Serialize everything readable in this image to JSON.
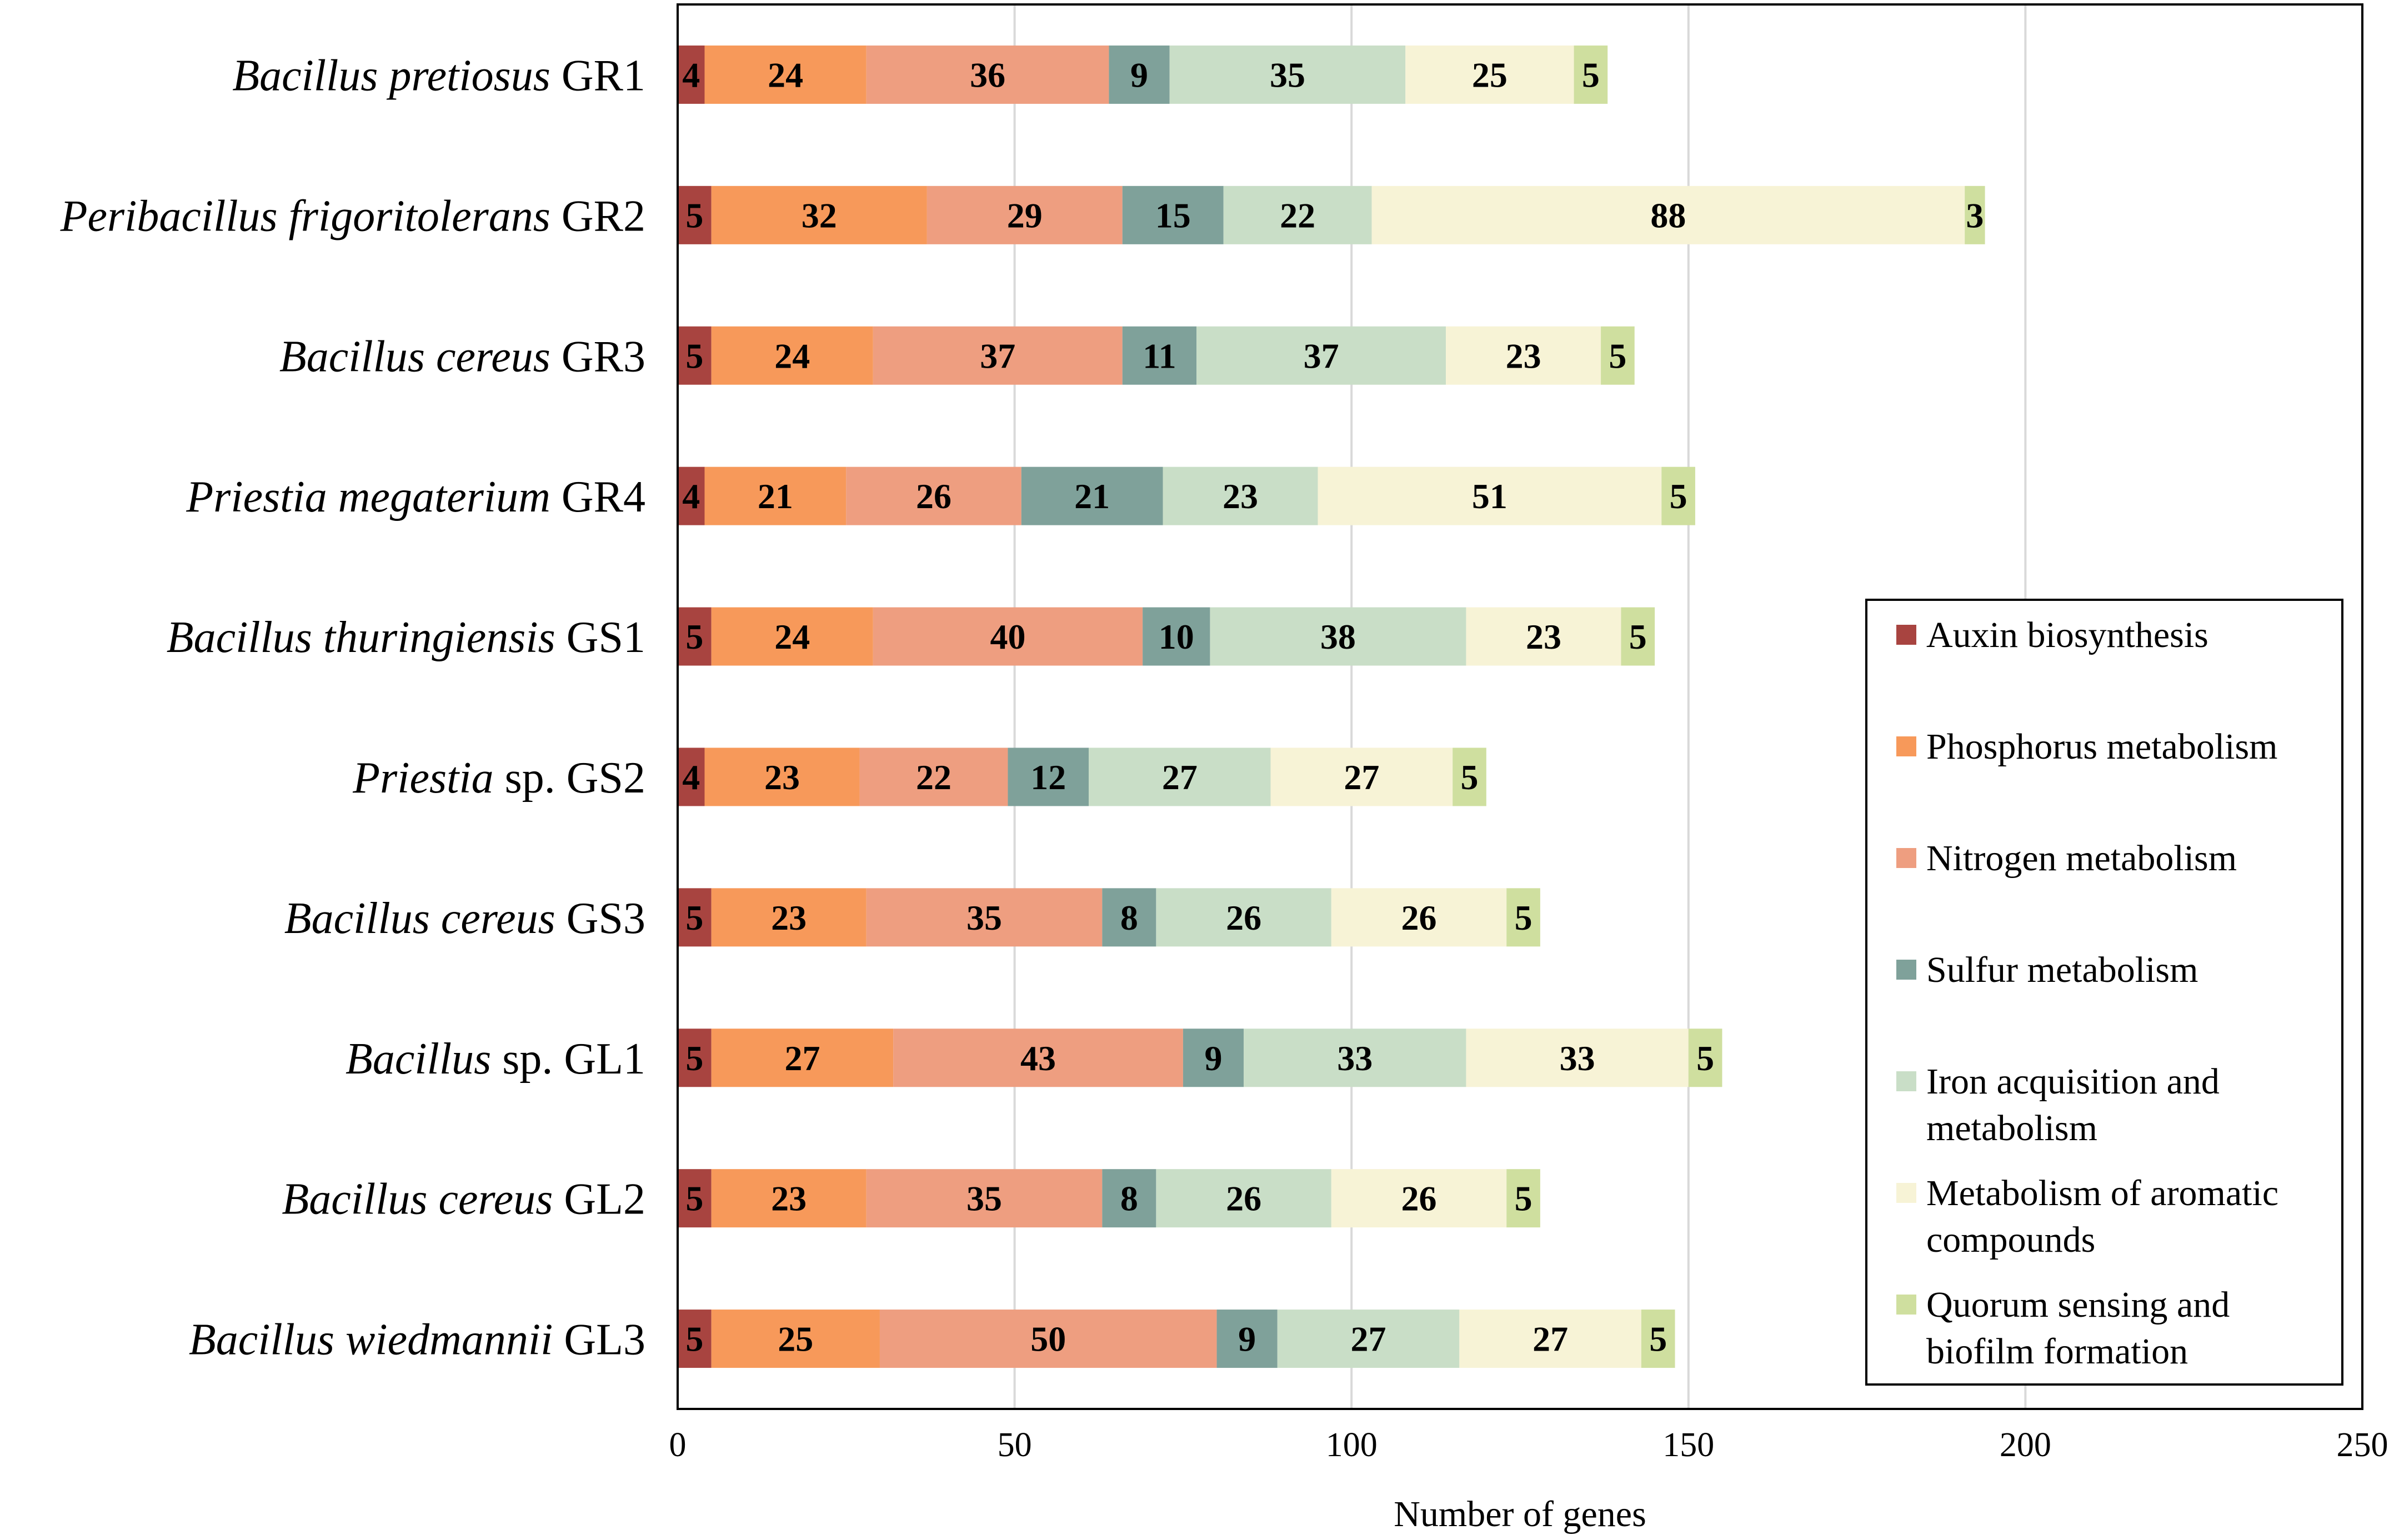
{
  "chart_data": {
    "type": "bar",
    "orientation": "horizontal",
    "stacked": true,
    "title": "",
    "xlabel": "Number of genes",
    "ylabel": "",
    "xlim": [
      0,
      250
    ],
    "xticks": [
      0,
      50,
      100,
      150,
      200,
      250
    ],
    "grid": "vertical",
    "legend_position": "bottom-right",
    "categories": [
      {
        "italic": "Bacillus pretiosus",
        "plain": "GR1"
      },
      {
        "italic": "Peribacillus frigoritolerans",
        "plain": "GR2"
      },
      {
        "italic": "Bacillus cereus",
        "plain": "GR3"
      },
      {
        "italic": "Priestia megaterium",
        "plain": "GR4"
      },
      {
        "italic": "Bacillus thuringiensis",
        "plain": "GS1"
      },
      {
        "italic": "Priestia",
        "plain": "sp. GS2"
      },
      {
        "italic": "Bacillus cereus",
        "plain": "GS3"
      },
      {
        "italic": "Bacillus",
        "plain": "sp. GL1"
      },
      {
        "italic": "Bacillus cereus",
        "plain": "GL2"
      },
      {
        "italic": "Bacillus wiedmannii",
        "plain": "GL3"
      }
    ],
    "series": [
      {
        "name": "Auxin biosynthesis",
        "legend_lines": [
          "Auxin biosynthesis"
        ],
        "color": "#A84440",
        "values": [
          4,
          5,
          5,
          4,
          5,
          4,
          5,
          5,
          5,
          5
        ]
      },
      {
        "name": "Phosphorus metabolism",
        "legend_lines": [
          "Phosphorus metabolism"
        ],
        "color": "#F7995A",
        "values": [
          24,
          32,
          24,
          21,
          24,
          23,
          23,
          27,
          23,
          25
        ]
      },
      {
        "name": "Nitrogen metabolism",
        "legend_lines": [
          "Nitrogen metabolism"
        ],
        "color": "#EE9E80",
        "values": [
          36,
          29,
          37,
          26,
          40,
          22,
          35,
          43,
          35,
          50
        ]
      },
      {
        "name": "Sulfur metabolism",
        "legend_lines": [
          "Sulfur metabolism"
        ],
        "color": "#7FA19A",
        "values": [
          9,
          15,
          11,
          21,
          10,
          12,
          8,
          9,
          8,
          9
        ]
      },
      {
        "name": "Iron acquisition and metabolism",
        "legend_lines": [
          "Iron acquisition and",
          "metabolism"
        ],
        "color": "#C9DEC7",
        "values": [
          35,
          22,
          37,
          23,
          38,
          27,
          26,
          33,
          26,
          27
        ]
      },
      {
        "name": "Metabolism of aromatic compounds",
        "legend_lines": [
          "Metabolism of aromatic",
          "compounds"
        ],
        "color": "#F7F3D6",
        "values": [
          25,
          88,
          23,
          51,
          23,
          27,
          26,
          33,
          26,
          27
        ]
      },
      {
        "name": "Quorum sensing and biofilm formation",
        "legend_lines": [
          "Quorum sensing and",
          "biofilm formation"
        ],
        "color": "#CFDF9F",
        "values": [
          5,
          3,
          5,
          5,
          5,
          5,
          5,
          5,
          5,
          5
        ]
      }
    ]
  }
}
